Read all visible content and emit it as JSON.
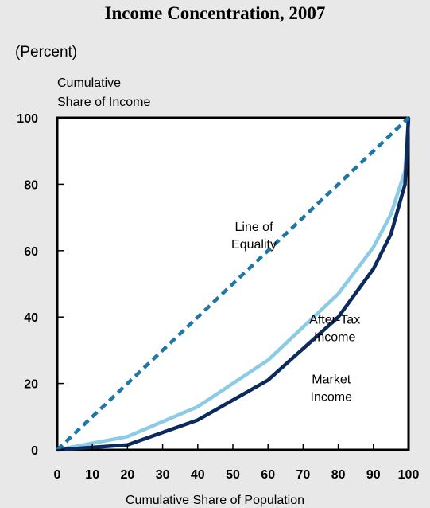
{
  "chart_data": {
    "type": "line",
    "title": "Income Concentration, 2007",
    "subtitle": "(Percent)",
    "ylabel": [
      "Cumulative",
      "Share of Income"
    ],
    "xlabel": "Cumulative Share of Population",
    "xlim": [
      0,
      100
    ],
    "ylim": [
      0,
      100
    ],
    "xticks": [
      0,
      10,
      20,
      30,
      40,
      50,
      60,
      70,
      80,
      90,
      100
    ],
    "yticks": [
      0,
      20,
      40,
      60,
      80,
      100
    ],
    "grid": false,
    "series": [
      {
        "name": "Line of Equality",
        "label_lines": [
          "Line of",
          "Equality"
        ],
        "style": "dashed",
        "color": "#1f77a8",
        "x": [
          0,
          100
        ],
        "y": [
          0,
          100
        ]
      },
      {
        "name": "After-Tax Income",
        "label_lines": [
          "After-Tax",
          "Income"
        ],
        "style": "solid",
        "color": "#8ccbe5",
        "x": [
          0,
          20,
          40,
          60,
          80,
          90,
          95,
          99,
          100
        ],
        "y": [
          0,
          4,
          13,
          27,
          47,
          61,
          71,
          84,
          100
        ]
      },
      {
        "name": "Market Income",
        "label_lines": [
          "Market",
          "Income"
        ],
        "style": "solid",
        "color": "#0d2a5c",
        "x": [
          0,
          20,
          40,
          60,
          80,
          90,
          95,
          99,
          100
        ],
        "y": [
          0,
          1.5,
          9,
          21,
          40,
          54.5,
          65,
          80,
          100
        ]
      }
    ]
  }
}
